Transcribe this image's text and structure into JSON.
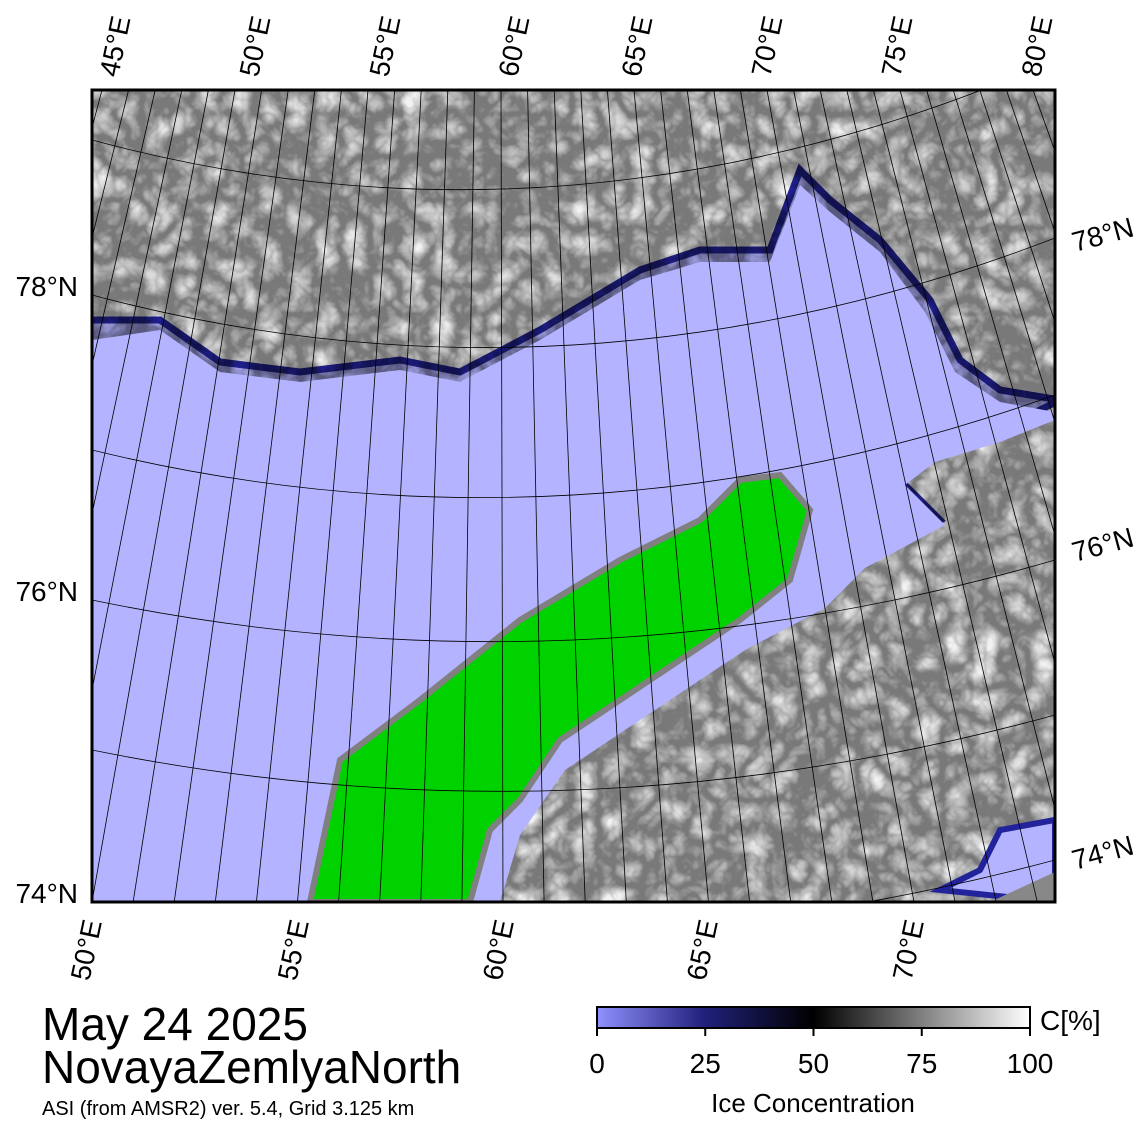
{
  "map": {
    "top_labels": [
      "45°E",
      "50°E",
      "55°E",
      "60°E",
      "65°E",
      "70°E",
      "75°E",
      "80°E"
    ],
    "left_labels": [
      "78°N",
      "76°N",
      "74°N"
    ],
    "right_labels": [
      "78°N",
      "76°N",
      "74°N"
    ],
    "bottom_labels": [
      "50°E",
      "55°E",
      "60°E",
      "65°E",
      "70°E"
    ]
  },
  "title": {
    "date": "May 24 2025",
    "region": "NovayaZemlyaNorth",
    "caption": "ASI (from AMSR2) ver. 5.4,  Grid 3.125 km"
  },
  "colorbar": {
    "unit": "C[%]",
    "label": "Ice Concentration",
    "ticks": [
      0,
      25,
      50,
      75,
      100
    ],
    "lim": [
      0,
      100
    ]
  }
}
